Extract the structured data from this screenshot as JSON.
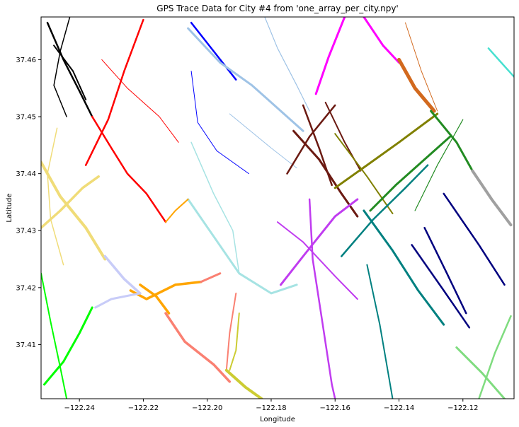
{
  "chart_data": {
    "type": "scatter",
    "title": "GPS Trace Data for City #4 from 'one_array_per_city.npy'",
    "xlabel": "Longitude",
    "ylabel": "Latitude",
    "xlim": [
      -122.252,
      -122.104
    ],
    "ylim": [
      37.4005,
      37.4675
    ],
    "x_ticks": [
      -122.24,
      -122.22,
      -122.2,
      -122.18,
      -122.16,
      -122.14,
      -122.12
    ],
    "x_tick_labels": [
      "−122.24",
      "−122.22",
      "−122.20",
      "−122.18",
      "−122.16",
      "−122.14",
      "−122.12"
    ],
    "y_ticks": [
      37.41,
      37.42,
      37.43,
      37.44,
      37.45,
      37.46
    ],
    "y_tick_labels": [
      "37.41",
      "37.42",
      "37.43",
      "37.44",
      "37.45",
      "37.46"
    ],
    "grid": false,
    "legend": "none",
    "series": [
      {
        "color": "#000000",
        "width": 2.5,
        "dashed": false,
        "points": [
          [
            -122.25,
            37.4665
          ],
          [
            -122.245,
            37.46
          ],
          [
            -122.24,
            37.4545
          ],
          [
            -122.236,
            37.45
          ]
        ]
      },
      {
        "color": "#000000",
        "width": 2.0,
        "dashed": false,
        "points": [
          [
            -122.248,
            37.4625
          ],
          [
            -122.242,
            37.458
          ],
          [
            -122.238,
            37.453
          ]
        ]
      },
      {
        "color": "#000000",
        "width": 1.5,
        "dashed": false,
        "points": [
          [
            -122.243,
            37.4675
          ],
          [
            -122.246,
            37.4615
          ],
          [
            -122.248,
            37.4555
          ],
          [
            -122.244,
            37.45
          ]
        ]
      },
      {
        "color": "#ff0000",
        "width": 2.5,
        "dashed": false,
        "points": [
          [
            -122.236,
            37.45
          ],
          [
            -122.23,
            37.4445
          ],
          [
            -122.225,
            37.44
          ],
          [
            -122.219,
            37.4365
          ],
          [
            -122.213,
            37.4315
          ]
        ]
      },
      {
        "color": "#ff0000",
        "width": 2.5,
        "dashed": false,
        "points": [
          [
            -122.22,
            37.467
          ],
          [
            -122.226,
            37.458
          ],
          [
            -122.231,
            37.4495
          ],
          [
            -122.238,
            37.4415
          ]
        ]
      },
      {
        "color": "#ff0000",
        "width": 1.0,
        "dashed": false,
        "points": [
          [
            -122.233,
            37.46
          ],
          [
            -122.225,
            37.455
          ],
          [
            -122.215,
            37.45
          ],
          [
            -122.209,
            37.4455
          ]
        ]
      },
      {
        "color": "#0000ff",
        "width": 2.5,
        "dashed": false,
        "points": [
          [
            -122.205,
            37.4665
          ],
          [
            -122.198,
            37.4615
          ],
          [
            -122.191,
            37.4565
          ]
        ]
      },
      {
        "color": "#0000ff",
        "width": 1.0,
        "dashed": false,
        "points": [
          [
            -122.205,
            37.458
          ],
          [
            -122.203,
            37.449
          ],
          [
            -122.197,
            37.444
          ],
          [
            -122.187,
            37.44
          ]
        ]
      },
      {
        "color": "#9fc3e6",
        "width": 3.0,
        "dashed": false,
        "points": [
          [
            -122.206,
            37.4655
          ],
          [
            -122.196,
            37.4595
          ],
          [
            -122.186,
            37.4555
          ],
          [
            -122.177,
            37.451
          ],
          [
            -122.17,
            37.4475
          ]
        ]
      },
      {
        "color": "#9fc3e6",
        "width": 1.2,
        "dashed": false,
        "points": [
          [
            -122.182,
            37.4675
          ],
          [
            -122.178,
            37.462
          ],
          [
            -122.172,
            37.4555
          ],
          [
            -122.168,
            37.451
          ]
        ]
      },
      {
        "color": "#9fc3e6",
        "width": 1.0,
        "dashed": false,
        "points": [
          [
            -122.193,
            37.4505
          ],
          [
            -122.18,
            37.4445
          ],
          [
            -122.172,
            37.441
          ]
        ]
      },
      {
        "color": "#a6e3e3",
        "width": 3.0,
        "dashed": false,
        "points": [
          [
            -122.206,
            37.4355
          ],
          [
            -122.198,
            37.429
          ],
          [
            -122.19,
            37.4225
          ],
          [
            -122.18,
            37.419
          ],
          [
            -122.172,
            37.4205
          ]
        ]
      },
      {
        "color": "#a6e3e3",
        "width": 1.5,
        "dashed": false,
        "points": [
          [
            -122.205,
            37.4455
          ],
          [
            -122.198,
            37.4365
          ],
          [
            -122.192,
            37.43
          ],
          [
            -122.19,
            37.4225
          ]
        ]
      },
      {
        "color": "#ff00ff",
        "width": 3.0,
        "dashed": false,
        "points": [
          [
            -122.157,
            37.4675
          ],
          [
            -122.162,
            37.4605
          ],
          [
            -122.166,
            37.454
          ]
        ]
      },
      {
        "color": "#ff00ff",
        "width": 3.0,
        "dashed": false,
        "points": [
          [
            -122.151,
            37.4675
          ],
          [
            -122.145,
            37.4625
          ],
          [
            -122.14,
            37.4595
          ]
        ]
      },
      {
        "color": "#d2691e",
        "width": 5.0,
        "dashed": false,
        "points": [
          [
            -122.14,
            37.46
          ],
          [
            -122.135,
            37.455
          ],
          [
            -122.129,
            37.451
          ]
        ]
      },
      {
        "color": "#d2691e",
        "width": 1.0,
        "dashed": false,
        "points": [
          [
            -122.138,
            37.4665
          ],
          [
            -122.133,
            37.458
          ],
          [
            -122.128,
            37.451
          ]
        ]
      },
      {
        "color": "#6b1a12",
        "width": 3.0,
        "dashed": false,
        "points": [
          [
            -122.173,
            37.4475
          ],
          [
            -122.165,
            37.4425
          ],
          [
            -122.158,
            37.4365
          ],
          [
            -122.153,
            37.4325
          ]
        ]
      },
      {
        "color": "#6b1a12",
        "width": 2.5,
        "dashed": false,
        "points": [
          [
            -122.17,
            37.452
          ],
          [
            -122.165,
            37.4445
          ],
          [
            -122.161,
            37.438
          ]
        ]
      },
      {
        "color": "#6b1a12",
        "width": 2.5,
        "dashed": false,
        "points": [
          [
            -122.175,
            37.44
          ],
          [
            -122.168,
            37.4465
          ],
          [
            -122.16,
            37.452
          ]
        ]
      },
      {
        "color": "#6b1a12",
        "width": 2.0,
        "dashed": false,
        "points": [
          [
            -122.163,
            37.4525
          ],
          [
            -122.157,
            37.4455
          ],
          [
            -122.152,
            37.4405
          ]
        ]
      },
      {
        "color": "#808000",
        "width": 3.0,
        "dashed": false,
        "points": [
          [
            -122.16,
            37.4375
          ],
          [
            -122.15,
            37.4415
          ],
          [
            -122.14,
            37.4455
          ],
          [
            -122.128,
            37.4505
          ]
        ]
      },
      {
        "color": "#808000",
        "width": 2.0,
        "dashed": false,
        "points": [
          [
            -122.16,
            37.447
          ],
          [
            -122.15,
            37.4395
          ],
          [
            -122.142,
            37.433
          ]
        ]
      },
      {
        "color": "#228b22",
        "width": 3.0,
        "dashed": false,
        "points": [
          [
            -122.13,
            37.451
          ],
          [
            -122.122,
            37.4455
          ],
          [
            -122.117,
            37.4405
          ]
        ]
      },
      {
        "color": "#228b22",
        "width": 3.0,
        "dashed": false,
        "points": [
          [
            -122.149,
            37.4335
          ],
          [
            -122.141,
            37.438
          ],
          [
            -122.132,
            37.4425
          ],
          [
            -122.124,
            37.4465
          ]
        ]
      },
      {
        "color": "#228b22",
        "width": 1.2,
        "dashed": false,
        "points": [
          [
            -122.12,
            37.4495
          ],
          [
            -122.128,
            37.4415
          ],
          [
            -122.135,
            37.4335
          ]
        ]
      },
      {
        "color": "#48e0d0",
        "width": 2.5,
        "dashed": false,
        "points": [
          [
            -122.112,
            37.462
          ],
          [
            -122.108,
            37.4595
          ],
          [
            -122.104,
            37.457
          ]
        ]
      },
      {
        "color": "#a0a0a0",
        "width": 4.0,
        "dashed": false,
        "points": [
          [
            -122.117,
            37.4405
          ],
          [
            -122.111,
            37.4355
          ],
          [
            -122.105,
            37.431
          ]
        ]
      },
      {
        "color": "#c03cf0",
        "width": 3.0,
        "dashed": false,
        "points": [
          [
            -122.177,
            37.4205
          ],
          [
            -122.17,
            37.4255
          ],
          [
            -122.16,
            37.4325
          ],
          [
            -122.153,
            37.4355
          ]
        ]
      },
      {
        "color": "#c03cf0",
        "width": 2.5,
        "dashed": false,
        "points": [
          [
            -122.168,
            37.4355
          ],
          [
            -122.167,
            37.425
          ],
          [
            -122.164,
            37.414
          ],
          [
            -122.161,
            37.403
          ],
          [
            -122.16,
            37.4005
          ]
        ]
      },
      {
        "color": "#c03cf0",
        "width": 2.0,
        "dashed": false,
        "points": [
          [
            -122.178,
            37.4315
          ],
          [
            -122.17,
            37.428
          ],
          [
            -122.16,
            37.422
          ],
          [
            -122.153,
            37.418
          ]
        ]
      },
      {
        "color": "#008080",
        "width": 3.0,
        "dashed": false,
        "points": [
          [
            -122.151,
            37.4335
          ],
          [
            -122.142,
            37.4265
          ],
          [
            -122.134,
            37.4195
          ],
          [
            -122.126,
            37.4135
          ]
        ]
      },
      {
        "color": "#008080",
        "width": 2.5,
        "dashed": false,
        "points": [
          [
            -122.158,
            37.4255
          ],
          [
            -122.148,
            37.432
          ],
          [
            -122.138,
            37.4375
          ],
          [
            -122.131,
            37.4415
          ]
        ]
      },
      {
        "color": "#008080",
        "width": 2.0,
        "dashed": false,
        "points": [
          [
            -122.15,
            37.424
          ],
          [
            -122.146,
            37.4135
          ],
          [
            -122.142,
            37.4005
          ]
        ]
      },
      {
        "color": "#00007f",
        "width": 2.5,
        "dashed": false,
        "points": [
          [
            -122.136,
            37.4275
          ],
          [
            -122.126,
            37.4195
          ],
          [
            -122.118,
            37.413
          ]
        ]
      },
      {
        "color": "#00007f",
        "width": 2.5,
        "dashed": false,
        "points": [
          [
            -122.132,
            37.4305
          ],
          [
            -122.125,
            37.4225
          ],
          [
            -122.119,
            37.4155
          ]
        ]
      },
      {
        "color": "#00007f",
        "width": 2.5,
        "dashed": false,
        "points": [
          [
            -122.126,
            37.4365
          ],
          [
            -122.115,
            37.4275
          ],
          [
            -122.107,
            37.4205
          ]
        ]
      },
      {
        "color": "#7fdc7f",
        "width": 3.0,
        "dashed": false,
        "points": [
          [
            -122.122,
            37.4095
          ],
          [
            -122.114,
            37.405
          ],
          [
            -122.107,
            37.4005
          ]
        ]
      },
      {
        "color": "#7fdc7f",
        "width": 2.5,
        "dashed": false,
        "points": [
          [
            -122.105,
            37.415
          ],
          [
            -122.11,
            37.4085
          ],
          [
            -122.115,
            37.4005
          ]
        ]
      },
      {
        "color": "#ffa500",
        "width": 3.5,
        "dashed": false,
        "points": [
          [
            -122.224,
            37.4195
          ],
          [
            -122.219,
            37.418
          ],
          [
            -122.21,
            37.4205
          ],
          [
            -122.202,
            37.421
          ]
        ]
      },
      {
        "color": "#ffa500",
        "width": 3.5,
        "dashed": false,
        "points": [
          [
            -122.212,
            37.4155
          ],
          [
            -122.216,
            37.4185
          ],
          [
            -122.221,
            37.4205
          ]
        ]
      },
      {
        "color": "#ffa500",
        "width": 2.0,
        "dashed": false,
        "points": [
          [
            -122.206,
            37.4355
          ],
          [
            -122.21,
            37.4335
          ],
          [
            -122.213,
            37.4315
          ]
        ]
      },
      {
        "color": "#fa8072",
        "width": 3.5,
        "dashed": false,
        "points": [
          [
            -122.213,
            37.4155
          ],
          [
            -122.207,
            37.4105
          ],
          [
            -122.198,
            37.4065
          ],
          [
            -122.193,
            37.4035
          ]
        ]
      },
      {
        "color": "#fa8072",
        "width": 3.0,
        "dashed": false,
        "points": [
          [
            -122.202,
            37.421
          ],
          [
            -122.196,
            37.4225
          ]
        ]
      },
      {
        "color": "#fa8072",
        "width": 2.0,
        "dashed": false,
        "points": [
          [
            -122.191,
            37.419
          ],
          [
            -122.193,
            37.412
          ],
          [
            -122.194,
            37.4055
          ]
        ]
      },
      {
        "color": "#cccc33",
        "width": 4.0,
        "dashed": false,
        "points": [
          [
            -122.194,
            37.4055
          ],
          [
            -122.188,
            37.4025
          ],
          [
            -122.183,
            37.4005
          ]
        ]
      },
      {
        "color": "#cccc33",
        "width": 2.0,
        "dashed": false,
        "points": [
          [
            -122.19,
            37.4155
          ],
          [
            -122.191,
            37.409
          ],
          [
            -122.193,
            37.4055
          ]
        ]
      },
      {
        "color": "#f0dc78",
        "width": 4.0,
        "dashed": false,
        "points": [
          [
            -122.252,
            37.442
          ],
          [
            -122.246,
            37.436
          ],
          [
            -122.238,
            37.4305
          ],
          [
            -122.232,
            37.425
          ]
        ]
      },
      {
        "color": "#f0dc78",
        "width": 3.5,
        "dashed": false,
        "points": [
          [
            -122.252,
            37.4305
          ],
          [
            -122.246,
            37.4335
          ],
          [
            -122.239,
            37.4375
          ],
          [
            -122.234,
            37.4395
          ]
        ]
      },
      {
        "color": "#f0dc78",
        "width": 1.5,
        "dashed": false,
        "points": [
          [
            -122.247,
            37.448
          ],
          [
            -122.25,
            37.44
          ],
          [
            -122.249,
            37.432
          ],
          [
            -122.245,
            37.424
          ]
        ]
      },
      {
        "color": "#c8ccf8",
        "width": 3.5,
        "dashed": false,
        "points": [
          [
            -122.232,
            37.4255
          ],
          [
            -122.226,
            37.4215
          ],
          [
            -122.221,
            37.419
          ]
        ]
      },
      {
        "color": "#c8ccf8",
        "width": 3.0,
        "dashed": false,
        "points": [
          [
            -122.221,
            37.419
          ],
          [
            -122.23,
            37.418
          ],
          [
            -122.235,
            37.4165
          ]
        ]
      },
      {
        "color": "#00ff00",
        "width": 3.0,
        "dashed": false,
        "points": [
          [
            -122.236,
            37.4165
          ],
          [
            -122.24,
            37.412
          ],
          [
            -122.245,
            37.407
          ],
          [
            -122.251,
            37.403
          ]
        ]
      },
      {
        "color": "#00ff00",
        "width": 2.0,
        "dashed": false,
        "points": [
          [
            -122.252,
            37.4225
          ],
          [
            -122.249,
            37.414
          ],
          [
            -122.246,
            37.406
          ],
          [
            -122.244,
            37.4005
          ]
        ]
      }
    ]
  }
}
